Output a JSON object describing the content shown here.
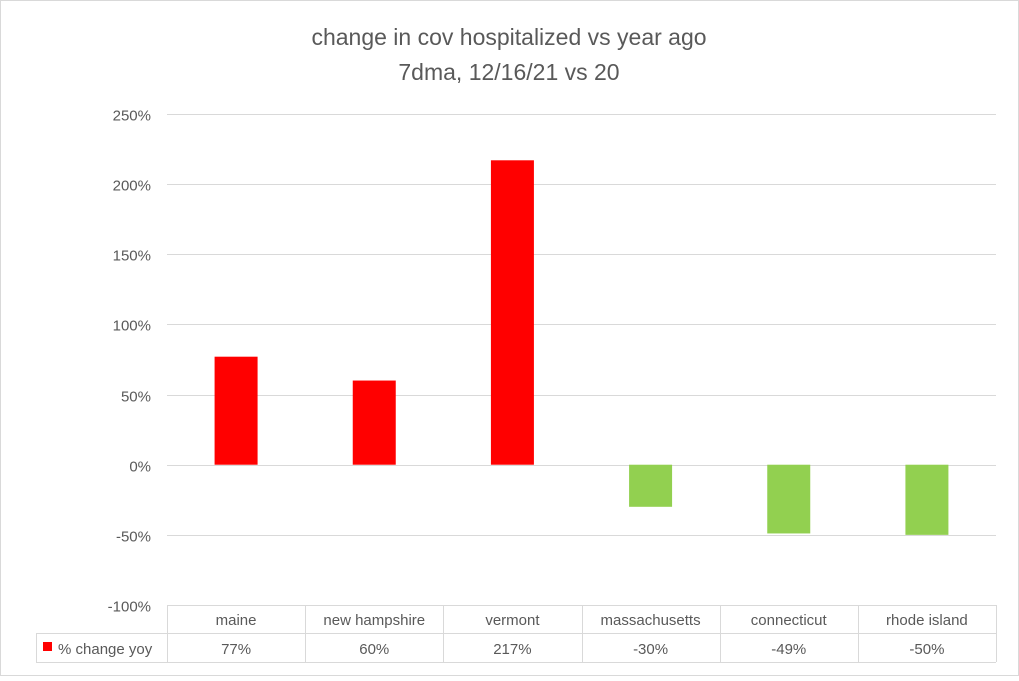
{
  "chart_data": {
    "type": "bar",
    "title": "change in cov hospitalized vs year ago",
    "subtitle": "7dma, 12/16/21 vs 20",
    "categories": [
      "maine",
      "new hampshire",
      "vermont",
      "massachusetts",
      "connecticut",
      "rhode island"
    ],
    "series": [
      {
        "name": "% change yoy",
        "values": [
          77,
          60,
          217,
          -30,
          -49,
          -50
        ],
        "labels": [
          "77%",
          "60%",
          "217%",
          "-30%",
          "-49%",
          "-50%"
        ],
        "positive_color": "#ff0000",
        "negative_color": "#92d050"
      }
    ],
    "ylim": [
      -100,
      250
    ],
    "yticks": [
      -100,
      -50,
      0,
      50,
      100,
      150,
      200,
      250
    ],
    "ytick_labels": [
      "-100%",
      "-50%",
      "0%",
      "50%",
      "100%",
      "150%",
      "200%",
      "250%"
    ],
    "grid": true,
    "legend": "data table",
    "legend_marker_color": "#ff0000"
  }
}
